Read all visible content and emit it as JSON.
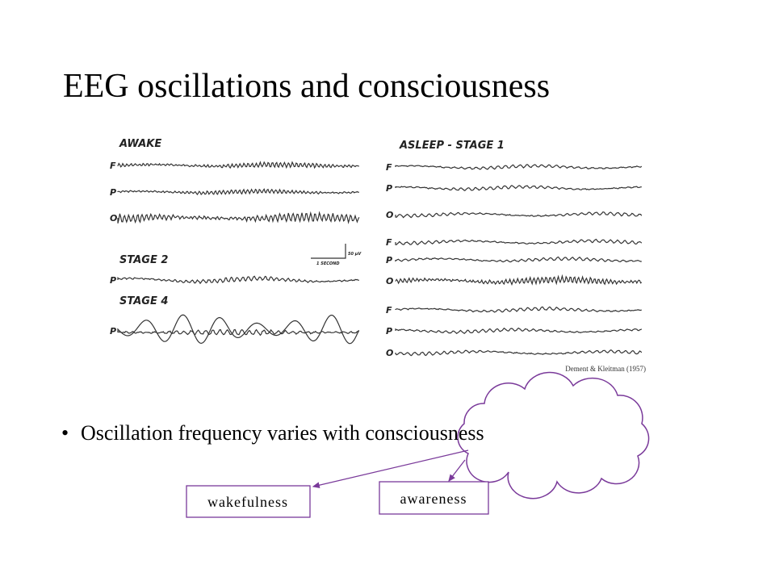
{
  "title": "EEG oscillations and consciousness",
  "figure": {
    "panels": [
      {
        "label": "AWAKE",
        "channels": [
          "F",
          "P",
          "O"
        ]
      },
      {
        "label": "STAGE 2",
        "channels": [
          "P"
        ]
      },
      {
        "label": "STAGE 4",
        "channels": [
          "P"
        ]
      },
      {
        "label": "ASLEEP - STAGE 1",
        "channels": [
          "F",
          "P",
          "O",
          "F",
          "P",
          "O",
          "F",
          "P",
          "O"
        ]
      }
    ],
    "scale": {
      "time": "1 SECOND",
      "amplitude": "50 µV"
    },
    "citation": "Dement & Kleitman (1957)"
  },
  "bullets": [
    "Oscillation frequency varies with consciousness"
  ],
  "boxes": [
    "wakefulness",
    "awareness"
  ]
}
